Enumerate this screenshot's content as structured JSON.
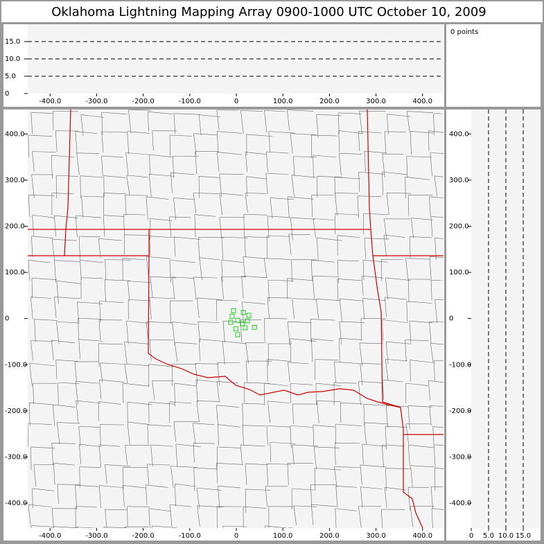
{
  "title": "Oklahoma Lightning Mapping Array   0900-1000 UTC  October 10, 2009",
  "points_text": "0 points",
  "chart_data": [
    {
      "type": "scatter",
      "x": [
        -6,
        -9,
        15,
        27,
        -12,
        3,
        24,
        13,
        -1,
        19,
        39,
        3
      ],
      "y": [
        17,
        5,
        13,
        7,
        -8,
        -4,
        -5,
        -11,
        -22,
        -20,
        -19,
        -35
      ],
      "color": "#22cc22",
      "xlim": [
        -448,
        445
      ],
      "ylim": [
        -454,
        453
      ],
      "xticks": [
        {
          "value": -400,
          "label": "-400.0"
        },
        {
          "value": -300,
          "label": "-300.0"
        },
        {
          "value": -200,
          "label": "-200.0"
        },
        {
          "value": -100,
          "label": "-100.0"
        },
        0,
        {
          "value": 100,
          "label": "100.0"
        },
        {
          "value": 200,
          "label": "200.0"
        },
        {
          "value": 300,
          "label": "300.0"
        },
        {
          "value": 400,
          "label": "400.0"
        }
      ],
      "yticks": [
        {
          "value": -400,
          "label": "-400.0"
        },
        {
          "value": -300,
          "label": "-300.0"
        },
        {
          "value": -200,
          "label": "-200.0"
        },
        {
          "value": -100,
          "label": "-100.0"
        },
        0,
        {
          "value": 100,
          "label": "100.0"
        },
        {
          "value": 200,
          "label": "200.0"
        },
        {
          "value": 300,
          "label": "300.0"
        },
        {
          "value": 400,
          "label": "400.0"
        }
      ]
    },
    {
      "type": "altitude-ew",
      "xlim": [
        -448,
        445
      ],
      "ylim": [
        0,
        20
      ],
      "xticks": [
        {
          "value": -400,
          "label": "-400.0"
        },
        {
          "value": -300,
          "label": "-300.0"
        },
        {
          "value": -200,
          "label": "-200.0"
        },
        {
          "value": -100,
          "label": "-100.0"
        },
        0,
        {
          "value": 100,
          "label": "100.0"
        },
        {
          "value": 200,
          "label": "200.0"
        },
        {
          "value": 300,
          "label": "300.0"
        },
        {
          "value": 400,
          "label": "400.0"
        }
      ],
      "yticks": [
        0,
        {
          "value": 5,
          "label": "5.0"
        },
        {
          "value": 10,
          "label": "10.0"
        },
        {
          "value": 15,
          "label": "15.0"
        }
      ],
      "grid": "dashed"
    },
    {
      "type": "altitude-ns",
      "xlim": [
        0,
        20
      ],
      "ylim": [
        -454,
        453
      ],
      "xticks": [
        0,
        {
          "value": 5,
          "label": "5.0"
        },
        {
          "value": 10,
          "label": "10.0"
        },
        {
          "value": 15,
          "label": "15.0"
        }
      ],
      "yticks": [
        {
          "value": -400,
          "label": "-400.0"
        },
        {
          "value": -300,
          "label": "-300.0"
        },
        {
          "value": -200,
          "label": "-200.0"
        },
        {
          "value": -100,
          "label": "-100.0"
        },
        0,
        {
          "value": 100,
          "label": "100.0"
        },
        {
          "value": 200,
          "label": "200.0"
        },
        {
          "value": 300,
          "label": "300.0"
        },
        {
          "value": 400,
          "label": "400.0"
        }
      ],
      "grid": "dashed"
    }
  ]
}
